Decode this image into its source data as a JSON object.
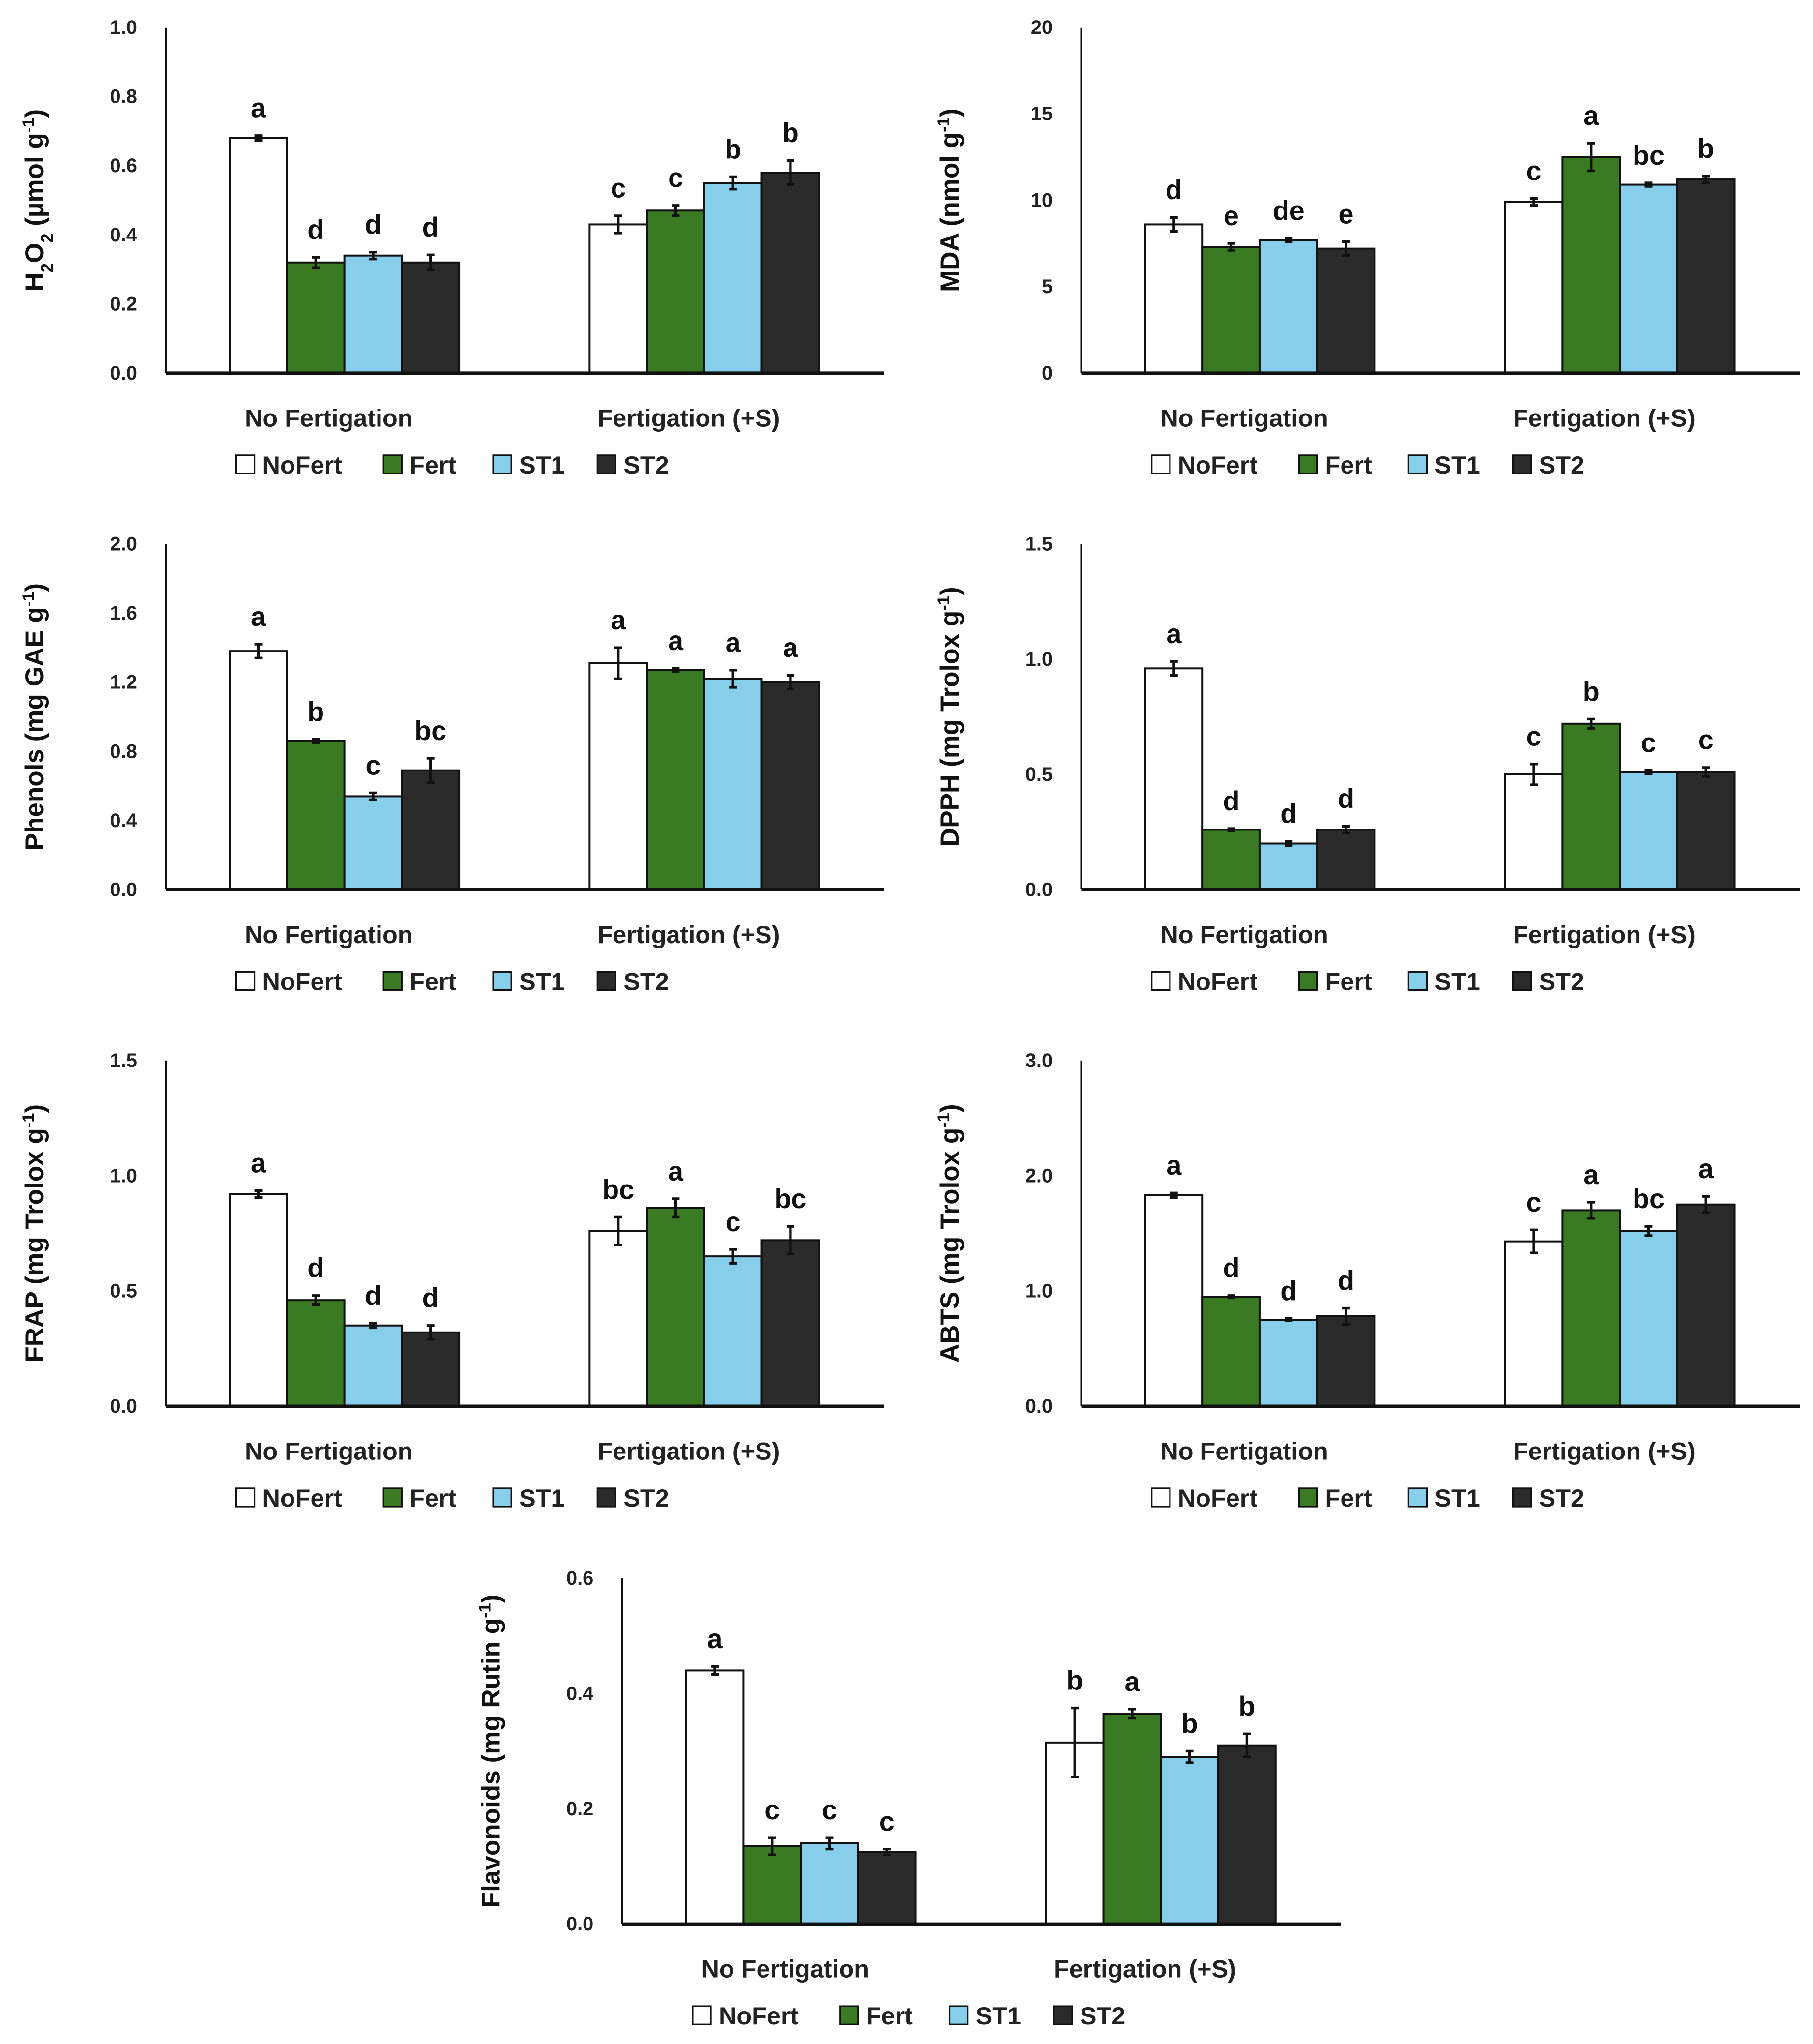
{
  "colors": {
    "NoFert": "#ffffff",
    "Fert": "#3a7a23",
    "ST1": "#87ceeb",
    "ST2": "#2b2b2b"
  },
  "legend": [
    "NoFert",
    "Fert",
    "ST1",
    "ST2"
  ],
  "chart_data": [
    {
      "type": "bar",
      "id": "h2o2",
      "ylabel": [
        {
          "t": "H"
        },
        {
          "t": "2",
          "sub": true
        },
        {
          "t": "O"
        },
        {
          "t": "2",
          "sub": true
        },
        {
          "t": " (µmol g"
        },
        {
          "t": "-1",
          "sup": true
        },
        {
          "t": ")"
        }
      ],
      "ylim": [
        0,
        1.0
      ],
      "yticks": [
        "0.0",
        "0.2",
        "0.4",
        "0.6",
        "0.8",
        "1.0"
      ],
      "categories": [
        "No Fertigation",
        "Fertigation (+S)"
      ],
      "series": [
        {
          "name": "NoFert",
          "values": [
            0.68,
            0.43
          ],
          "err": [
            0.007,
            0.025
          ],
          "letters": [
            "a",
            "c"
          ]
        },
        {
          "name": "Fert",
          "values": [
            0.32,
            0.47
          ],
          "err": [
            0.015,
            0.015
          ],
          "letters": [
            "d",
            "c"
          ]
        },
        {
          "name": "ST1",
          "values": [
            0.34,
            0.55
          ],
          "err": [
            0.01,
            0.018
          ],
          "letters": [
            "d",
            "b"
          ]
        },
        {
          "name": "ST2",
          "values": [
            0.32,
            0.58
          ],
          "err": [
            0.022,
            0.035
          ],
          "letters": [
            "d",
            "b"
          ]
        }
      ]
    },
    {
      "type": "bar",
      "id": "mda",
      "ylabel": [
        {
          "t": "MDA (nmol g"
        },
        {
          "t": "-1",
          "sup": true
        },
        {
          "t": ")"
        }
      ],
      "ylim": [
        0,
        20
      ],
      "yticks": [
        "0",
        "5",
        "10",
        "15",
        "20"
      ],
      "categories": [
        "No Fertigation",
        "Fertigation (+S)"
      ],
      "series": [
        {
          "name": "NoFert",
          "values": [
            8.6,
            9.9
          ],
          "err": [
            0.4,
            0.2
          ],
          "letters": [
            "d",
            "c"
          ]
        },
        {
          "name": "Fert",
          "values": [
            7.3,
            12.5
          ],
          "err": [
            0.2,
            0.8
          ],
          "letters": [
            "e",
            "a"
          ]
        },
        {
          "name": "ST1",
          "values": [
            7.7,
            10.9
          ],
          "err": [
            0.1,
            0.1
          ],
          "letters": [
            "de",
            "bc"
          ]
        },
        {
          "name": "ST2",
          "values": [
            7.2,
            11.2
          ],
          "err": [
            0.4,
            0.2
          ],
          "letters": [
            "e",
            "b"
          ]
        }
      ]
    },
    {
      "type": "bar",
      "id": "phenols",
      "ylabel": [
        {
          "t": "Phenols (mg GAE g"
        },
        {
          "t": "-1",
          "sup": true
        },
        {
          "t": ")"
        }
      ],
      "ylim": [
        0,
        2.0
      ],
      "yticks": [
        "0.0",
        "0.4",
        "0.8",
        "1.2",
        "1.6",
        "2.0"
      ],
      "categories": [
        "No Fertigation",
        "Fertigation (+S)"
      ],
      "series": [
        {
          "name": "NoFert",
          "values": [
            1.38,
            1.31
          ],
          "err": [
            0.04,
            0.09
          ],
          "letters": [
            "a",
            "a"
          ]
        },
        {
          "name": "Fert",
          "values": [
            0.86,
            1.27
          ],
          "err": [
            0.01,
            0.01
          ],
          "letters": [
            "b",
            "a"
          ]
        },
        {
          "name": "ST1",
          "values": [
            0.54,
            1.22
          ],
          "err": [
            0.02,
            0.05
          ],
          "letters": [
            "c",
            "a"
          ]
        },
        {
          "name": "ST2",
          "values": [
            0.69,
            1.2
          ],
          "err": [
            0.07,
            0.04
          ],
          "letters": [
            "bc",
            "a"
          ]
        }
      ]
    },
    {
      "type": "bar",
      "id": "dpph",
      "ylabel": [
        {
          "t": "DPPH (mg Trolox g"
        },
        {
          "t": "-1",
          "sup": true
        },
        {
          "t": ")"
        }
      ],
      "ylim": [
        0,
        1.5
      ],
      "yticks": [
        "0.0",
        "0.5",
        "1.0",
        "1.5"
      ],
      "categories": [
        "No Fertigation",
        "Fertigation (+S)"
      ],
      "series": [
        {
          "name": "NoFert",
          "values": [
            0.96,
            0.5
          ],
          "err": [
            0.03,
            0.045
          ],
          "letters": [
            "a",
            "c"
          ]
        },
        {
          "name": "Fert",
          "values": [
            0.26,
            0.72
          ],
          "err": [
            0.005,
            0.02
          ],
          "letters": [
            "d",
            "b"
          ]
        },
        {
          "name": "ST1",
          "values": [
            0.2,
            0.51
          ],
          "err": [
            0.01,
            0.008
          ],
          "letters": [
            "d",
            "c"
          ]
        },
        {
          "name": "ST2",
          "values": [
            0.26,
            0.51
          ],
          "err": [
            0.015,
            0.02
          ],
          "letters": [
            "d",
            "c"
          ]
        }
      ]
    },
    {
      "type": "bar",
      "id": "frap",
      "ylabel": [
        {
          "t": "FRAP (mg Trolox g"
        },
        {
          "t": "-1",
          "sup": true
        },
        {
          "t": ")"
        }
      ],
      "ylim": [
        0,
        1.5
      ],
      "yticks": [
        "0.0",
        "0.5",
        "1.0",
        "1.5"
      ],
      "categories": [
        "No Fertigation",
        "Fertigation (+S)"
      ],
      "series": [
        {
          "name": "NoFert",
          "values": [
            0.92,
            0.76
          ],
          "err": [
            0.015,
            0.06
          ],
          "letters": [
            "a",
            "bc"
          ]
        },
        {
          "name": "Fert",
          "values": [
            0.46,
            0.86
          ],
          "err": [
            0.02,
            0.04
          ],
          "letters": [
            "d",
            "a"
          ]
        },
        {
          "name": "ST1",
          "values": [
            0.35,
            0.65
          ],
          "err": [
            0.01,
            0.03
          ],
          "letters": [
            "d",
            "c"
          ]
        },
        {
          "name": "ST2",
          "values": [
            0.32,
            0.72
          ],
          "err": [
            0.03,
            0.06
          ],
          "letters": [
            "d",
            "bc"
          ]
        }
      ]
    },
    {
      "type": "bar",
      "id": "abts",
      "ylabel": [
        {
          "t": "ABTS (mg Trolox g"
        },
        {
          "t": "-1",
          "sup": true
        },
        {
          "t": ")"
        }
      ],
      "ylim": [
        0,
        3.0
      ],
      "yticks": [
        "0.0",
        "1.0",
        "2.0",
        "3.0"
      ],
      "categories": [
        "No Fertigation",
        "Fertigation (+S)"
      ],
      "series": [
        {
          "name": "NoFert",
          "values": [
            1.83,
            1.43
          ],
          "err": [
            0.02,
            0.1
          ],
          "letters": [
            "a",
            "c"
          ]
        },
        {
          "name": "Fert",
          "values": [
            0.95,
            1.7
          ],
          "err": [
            0.01,
            0.07
          ],
          "letters": [
            "d",
            "a"
          ]
        },
        {
          "name": "ST1",
          "values": [
            0.75,
            1.52
          ],
          "err": [
            0.01,
            0.04
          ],
          "letters": [
            "d",
            "bc"
          ]
        },
        {
          "name": "ST2",
          "values": [
            0.78,
            1.75
          ],
          "err": [
            0.07,
            0.07
          ],
          "letters": [
            "d",
            "a"
          ]
        }
      ]
    },
    {
      "type": "bar",
      "id": "flavonoids",
      "ylabel": [
        {
          "t": "Flavonoids (mg Rutin g"
        },
        {
          "t": "-1",
          "sup": true
        },
        {
          "t": ")"
        }
      ],
      "ylim": [
        0,
        0.6
      ],
      "yticks": [
        "0.0",
        "0.2",
        "0.4",
        "0.6"
      ],
      "categories": [
        "No Fertigation",
        "Fertigation (+S)"
      ],
      "series": [
        {
          "name": "NoFert",
          "values": [
            0.44,
            0.315
          ],
          "err": [
            0.007,
            0.06
          ],
          "letters": [
            "a",
            "b"
          ]
        },
        {
          "name": "Fert",
          "values": [
            0.135,
            0.365
          ],
          "err": [
            0.015,
            0.008
          ],
          "letters": [
            "c",
            "a"
          ]
        },
        {
          "name": "ST1",
          "values": [
            0.14,
            0.29
          ],
          "err": [
            0.01,
            0.01
          ],
          "letters": [
            "c",
            "b"
          ]
        },
        {
          "name": "ST2",
          "values": [
            0.125,
            0.31
          ],
          "err": [
            0.005,
            0.02
          ],
          "letters": [
            "c",
            "b"
          ]
        }
      ]
    }
  ]
}
